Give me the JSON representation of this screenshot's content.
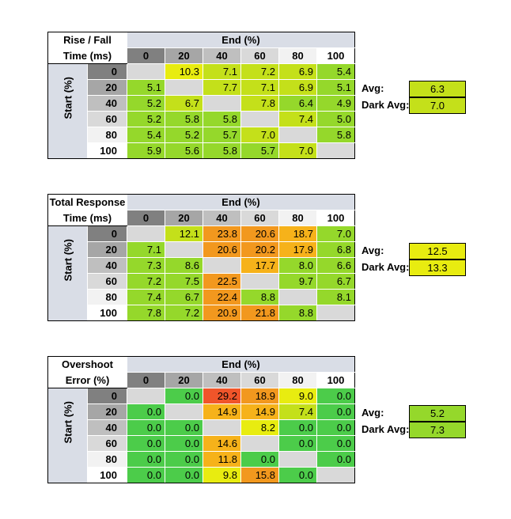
{
  "colors": {
    "green_dark": "#4ccc4a",
    "green": "#95d82b",
    "yellow_green": "#c4e01a",
    "yellow": "#e8ec10",
    "orange_light": "#f6b21a",
    "orange": "#f2981e",
    "red": "#f0552a",
    "gray": "#d9d9d9",
    "header_gray": "#d9dde6"
  },
  "tables": [
    {
      "title_line1": "Rise / Fall",
      "title_line2": "Time (ms)",
      "end_label": "End (%)",
      "start_label": "Start (%)",
      "columns": [
        "0",
        "20",
        "40",
        "60",
        "80",
        "100"
      ],
      "rows": [
        {
          "label": "0",
          "cells": [
            [
              "",
              "gray"
            ],
            [
              "10.3",
              "yellow"
            ],
            [
              "7.1",
              "yellow_green"
            ],
            [
              "7.2",
              "yellow_green"
            ],
            [
              "6.9",
              "yellow_green"
            ],
            [
              "5.4",
              "green"
            ]
          ]
        },
        {
          "label": "20",
          "cells": [
            [
              "5.1",
              "green"
            ],
            [
              "",
              "gray"
            ],
            [
              "7.7",
              "yellow_green"
            ],
            [
              "7.1",
              "yellow_green"
            ],
            [
              "6.9",
              "yellow_green"
            ],
            [
              "5.1",
              "green"
            ]
          ]
        },
        {
          "label": "40",
          "cells": [
            [
              "5.2",
              "green"
            ],
            [
              "6.7",
              "yellow_green"
            ],
            [
              "",
              "gray"
            ],
            [
              "7.8",
              "yellow_green"
            ],
            [
              "6.4",
              "green"
            ],
            [
              "4.9",
              "green"
            ]
          ]
        },
        {
          "label": "60",
          "cells": [
            [
              "5.2",
              "green"
            ],
            [
              "5.8",
              "green"
            ],
            [
              "5.8",
              "green"
            ],
            [
              "",
              "gray"
            ],
            [
              "7.4",
              "yellow_green"
            ],
            [
              "5.0",
              "green"
            ]
          ]
        },
        {
          "label": "80",
          "cells": [
            [
              "5.4",
              "green"
            ],
            [
              "5.2",
              "green"
            ],
            [
              "5.7",
              "green"
            ],
            [
              "7.0",
              "yellow_green"
            ],
            [
              "",
              "gray"
            ],
            [
              "5.8",
              "green"
            ]
          ]
        },
        {
          "label": "100",
          "cells": [
            [
              "5.9",
              "green"
            ],
            [
              "5.6",
              "green"
            ],
            [
              "5.8",
              "green"
            ],
            [
              "5.7",
              "green"
            ],
            [
              "7.0",
              "yellow_green"
            ],
            [
              "",
              "gray"
            ]
          ]
        }
      ],
      "avg_label": "Avg:",
      "avg_value": "6.3",
      "avg_color": "yellow_green",
      "dark_avg_label": "Dark Avg:",
      "dark_avg_value": "7.0",
      "dark_avg_color": "yellow_green"
    },
    {
      "title_line1": "Total Response",
      "title_line2": "Time (ms)",
      "end_label": "End (%)",
      "start_label": "Start (%)",
      "columns": [
        "0",
        "20",
        "40",
        "60",
        "80",
        "100"
      ],
      "rows": [
        {
          "label": "0",
          "cells": [
            [
              "",
              "gray"
            ],
            [
              "12.1",
              "yellow_green"
            ],
            [
              "23.8",
              "orange"
            ],
            [
              "20.6",
              "orange"
            ],
            [
              "18.7",
              "orange_light"
            ],
            [
              "7.0",
              "green"
            ]
          ]
        },
        {
          "label": "20",
          "cells": [
            [
              "7.1",
              "green"
            ],
            [
              "",
              "gray"
            ],
            [
              "20.6",
              "orange"
            ],
            [
              "20.2",
              "orange"
            ],
            [
              "17.9",
              "orange_light"
            ],
            [
              "6.8",
              "green"
            ]
          ]
        },
        {
          "label": "40",
          "cells": [
            [
              "7.3",
              "green"
            ],
            [
              "8.6",
              "green"
            ],
            [
              "",
              "gray"
            ],
            [
              "17.7",
              "orange_light"
            ],
            [
              "8.0",
              "green"
            ],
            [
              "6.6",
              "green"
            ]
          ]
        },
        {
          "label": "60",
          "cells": [
            [
              "7.2",
              "green"
            ],
            [
              "7.5",
              "green"
            ],
            [
              "22.5",
              "orange"
            ],
            [
              "",
              "gray"
            ],
            [
              "9.7",
              "green"
            ],
            [
              "6.7",
              "green"
            ]
          ]
        },
        {
          "label": "80",
          "cells": [
            [
              "7.4",
              "green"
            ],
            [
              "6.7",
              "green"
            ],
            [
              "22.4",
              "orange"
            ],
            [
              "8.8",
              "green"
            ],
            [
              "",
              "gray"
            ],
            [
              "8.1",
              "green"
            ]
          ]
        },
        {
          "label": "100",
          "cells": [
            [
              "7.8",
              "green"
            ],
            [
              "7.2",
              "green"
            ],
            [
              "20.9",
              "orange"
            ],
            [
              "21.8",
              "orange"
            ],
            [
              "8.8",
              "green"
            ],
            [
              "",
              "gray"
            ]
          ]
        }
      ],
      "avg_label": "Avg:",
      "avg_value": "12.5",
      "avg_color": "yellow",
      "dark_avg_label": "Dark Avg:",
      "dark_avg_value": "13.3",
      "dark_avg_color": "yellow"
    },
    {
      "title_line1": "Overshoot",
      "title_line2": "Error (%)",
      "end_label": "End (%)",
      "start_label": "Start (%)",
      "columns": [
        "0",
        "20",
        "40",
        "60",
        "80",
        "100"
      ],
      "rows": [
        {
          "label": "0",
          "cells": [
            [
              "",
              "gray"
            ],
            [
              "0.0",
              "green_dark"
            ],
            [
              "29.2",
              "red"
            ],
            [
              "18.9",
              "orange"
            ],
            [
              "9.0",
              "yellow"
            ],
            [
              "0.0",
              "green_dark"
            ]
          ]
        },
        {
          "label": "20",
          "cells": [
            [
              "0.0",
              "green_dark"
            ],
            [
              "",
              "gray"
            ],
            [
              "14.9",
              "orange_light"
            ],
            [
              "14.9",
              "orange_light"
            ],
            [
              "7.4",
              "yellow_green"
            ],
            [
              "0.0",
              "green_dark"
            ]
          ]
        },
        {
          "label": "40",
          "cells": [
            [
              "0.0",
              "green_dark"
            ],
            [
              "0.0",
              "green_dark"
            ],
            [
              "",
              "gray"
            ],
            [
              "8.2",
              "yellow"
            ],
            [
              "0.0",
              "green_dark"
            ],
            [
              "0.0",
              "green_dark"
            ]
          ]
        },
        {
          "label": "60",
          "cells": [
            [
              "0.0",
              "green_dark"
            ],
            [
              "0.0",
              "green_dark"
            ],
            [
              "14.6",
              "orange_light"
            ],
            [
              "",
              "gray"
            ],
            [
              "0.0",
              "green_dark"
            ],
            [
              "0.0",
              "green_dark"
            ]
          ]
        },
        {
          "label": "80",
          "cells": [
            [
              "0.0",
              "green_dark"
            ],
            [
              "0.0",
              "green_dark"
            ],
            [
              "11.8",
              "orange_light"
            ],
            [
              "0.0",
              "green_dark"
            ],
            [
              "",
              "gray"
            ],
            [
              "0.0",
              "green_dark"
            ]
          ]
        },
        {
          "label": "100",
          "cells": [
            [
              "0.0",
              "green_dark"
            ],
            [
              "0.0",
              "green_dark"
            ],
            [
              "9.8",
              "yellow"
            ],
            [
              "15.8",
              "orange"
            ],
            [
              "0.0",
              "green_dark"
            ],
            [
              "",
              "gray"
            ]
          ]
        }
      ],
      "avg_label": "Avg:",
      "avg_value": "5.2",
      "avg_color": "green",
      "dark_avg_label": "Dark Avg:",
      "dark_avg_value": "7.3",
      "dark_avg_color": "green"
    }
  ]
}
